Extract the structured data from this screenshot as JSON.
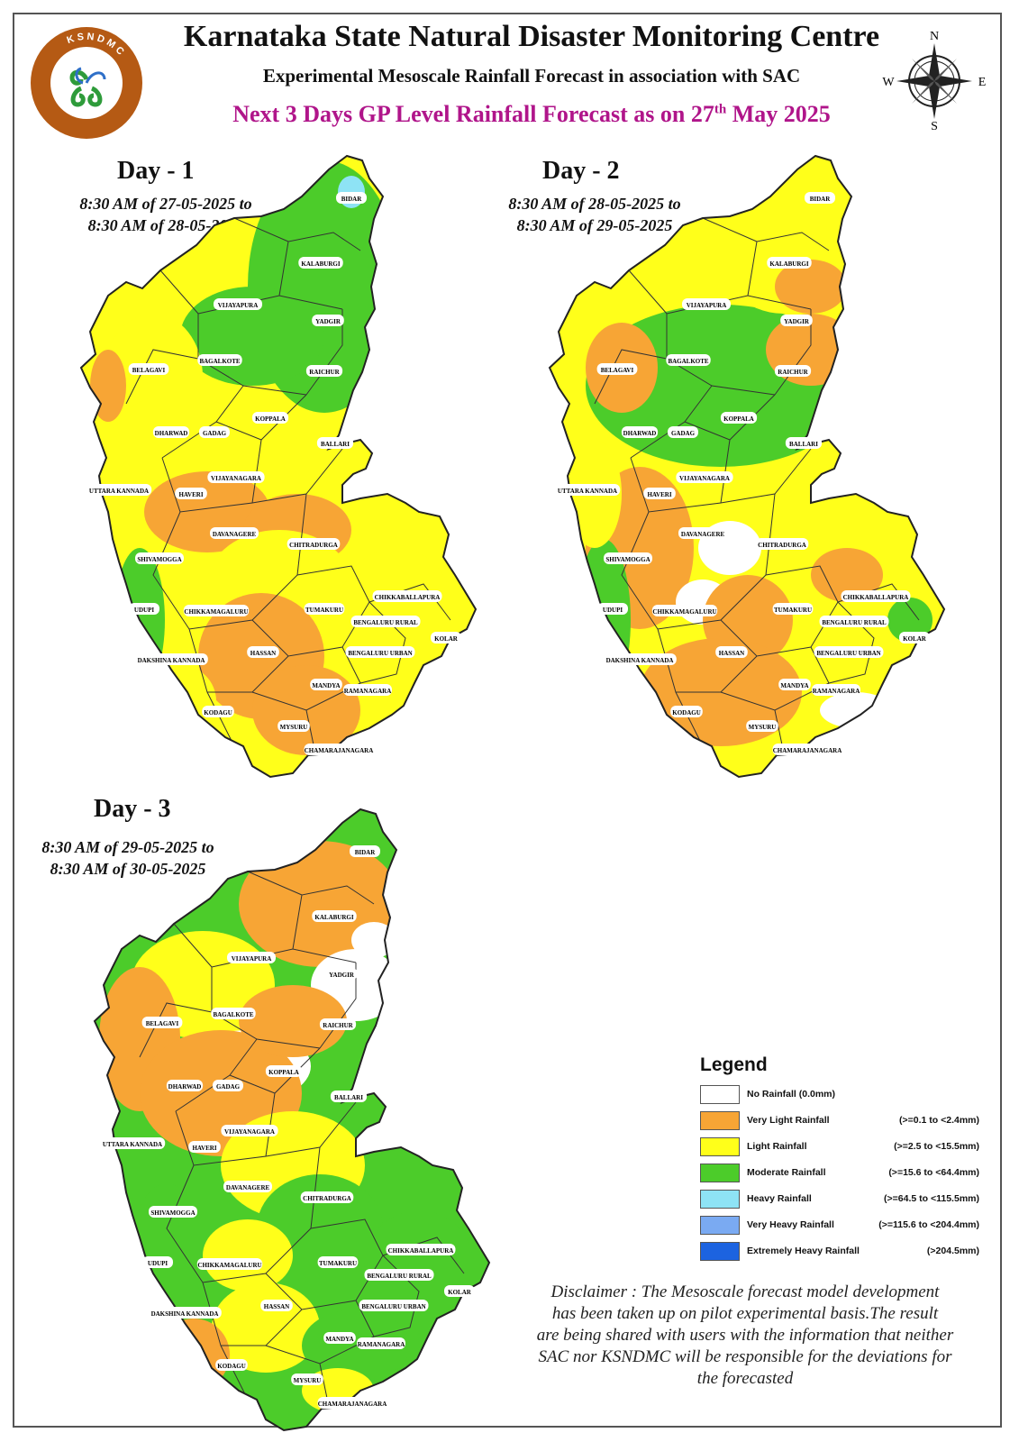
{
  "header": {
    "title": "Karnataka State Natural Disaster Monitoring Centre",
    "subtitle": "Experimental Mesoscale Rainfall Forecast in association with SAC",
    "headline_prefix": "Next 3 Days GP Level Rainfall Forecast  as on 27",
    "headline_sup": "th",
    "headline_suffix": " May 2025"
  },
  "logo": {
    "ring_text": "KSNDMC"
  },
  "compass": {
    "n": "N",
    "s": "S",
    "e": "E",
    "w": "W"
  },
  "days": [
    {
      "title": "Day - 1",
      "range_line1": "8:30 AM of 27-05-2025 to",
      "range_line2": "8:30 AM of 28-05-2025"
    },
    {
      "title": "Day - 2",
      "range_line1": "8:30 AM of 28-05-2025 to",
      "range_line2": "8:30 AM of 29-05-2025"
    },
    {
      "title": "Day - 3",
      "range_line1": "8:30 AM of 29-05-2025 to",
      "range_line2": "8:30 AM of 30-05-2025"
    }
  ],
  "districts": [
    "BIDAR",
    "KALABURGI",
    "YADGIR",
    "VIJAYAPURA",
    "BAGALKOTE",
    "RAICHUR",
    "BELAGAVI",
    "KOPPALA",
    "DHARWAD",
    "GADAG",
    "BALLARI",
    "UTTARA KANNADA",
    "HAVERI",
    "VIJAYANAGARA",
    "DAVANAGERE",
    "CHITRADURGA",
    "SHIVAMOGGA",
    "UDUPI",
    "CHIKKAMAGALURU",
    "TUMAKURU",
    "CHIKKABALLAPURA",
    "BENGALURU RURAL",
    "KOLAR",
    "BENGALURU URBAN",
    "DAKSHINA KANNADA",
    "HASSAN",
    "MANDYA",
    "RAMANAGARA",
    "KODAGU",
    "MYSURU",
    "CHAMARAJANAGARA"
  ],
  "legend": {
    "title": "Legend",
    "items": [
      {
        "label": "No Rainfall (0.0mm)",
        "range": "",
        "color": "#ffffff"
      },
      {
        "label": "Very Light Rainfall",
        "range": "(>=0.1 to <2.4mm)",
        "color": "#f7a535"
      },
      {
        "label": "Light Rainfall",
        "range": "(>=2.5 to <15.5mm)",
        "color": "#ffff1a"
      },
      {
        "label": "Moderate Rainfall",
        "range": "(>=15.6 to <64.4mm)",
        "color": "#4ccc2a"
      },
      {
        "label": "Heavy Rainfall",
        "range": "(>=64.5 to <115.5mm)",
        "color": "#8ee3f5"
      },
      {
        "label": "Very Heavy Rainfall",
        "range": "(>=115.6 to <204.4mm)",
        "color": "#7aaaf2"
      },
      {
        "label": "Extremely Heavy Rainfall",
        "range": "(>204.5mm)",
        "color": "#1c63e0"
      }
    ]
  },
  "disclaimer": {
    "lines": [
      "Disclaimer : The Mesoscale forecast model development",
      "has been taken up on pilot experimental basis.The result",
      "are being shared with users with the information that neither",
      "SAC nor KSNDMC will be responsible  for the deviations for",
      "the forecasted"
    ]
  }
}
